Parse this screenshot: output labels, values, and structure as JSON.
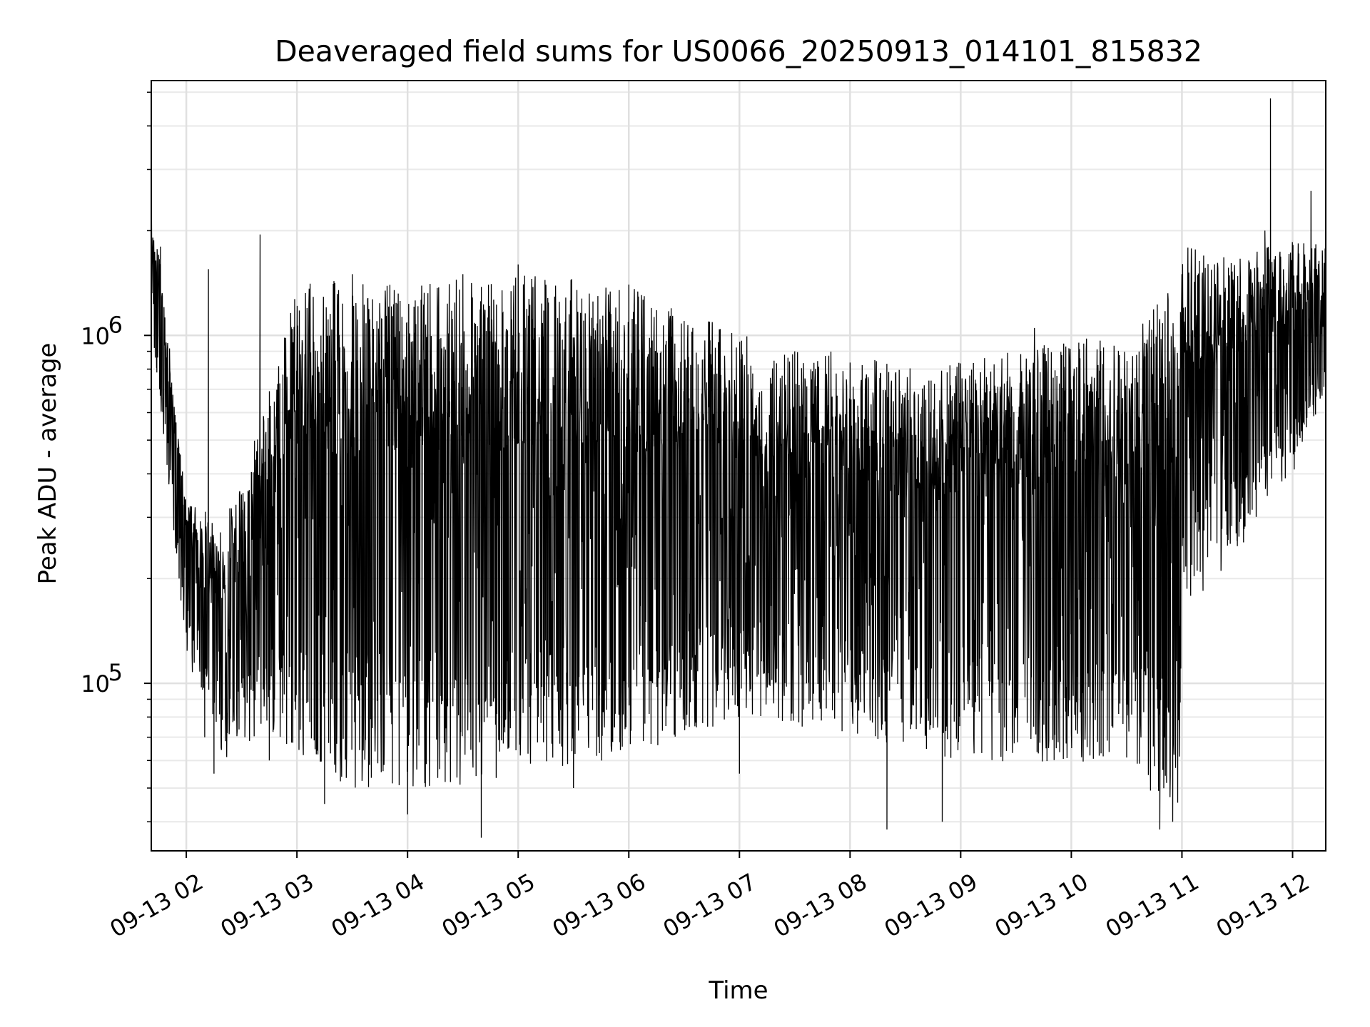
{
  "chart_data": {
    "type": "line",
    "title": "Deaveraged field sums for US0066_20250913_014101_815832",
    "xlabel": "Time",
    "ylabel": "Peak ADU - average",
    "yscale": "log",
    "ylim": [
      33000,
      5400000
    ],
    "xlim": [
      "2025-09-13 01:41",
      "2025-09-13 12:18"
    ],
    "grid": true,
    "line_color": "#000000",
    "x_ticks": [
      {
        "value": "2025-09-13 02:00",
        "label": "09-13 02"
      },
      {
        "value": "2025-09-13 03:00",
        "label": "09-13 03"
      },
      {
        "value": "2025-09-13 04:00",
        "label": "09-13 04"
      },
      {
        "value": "2025-09-13 05:00",
        "label": "09-13 05"
      },
      {
        "value": "2025-09-13 06:00",
        "label": "09-13 06"
      },
      {
        "value": "2025-09-13 07:00",
        "label": "09-13 07"
      },
      {
        "value": "2025-09-13 08:00",
        "label": "09-13 08"
      },
      {
        "value": "2025-09-13 09:00",
        "label": "09-13 09"
      },
      {
        "value": "2025-09-13 10:00",
        "label": "09-13 10"
      },
      {
        "value": "2025-09-13 11:00",
        "label": "09-13 11"
      },
      {
        "value": "2025-09-13 12:00",
        "label": "09-13 12"
      }
    ],
    "y_ticks": [
      {
        "value": 100000,
        "base": "10",
        "exponent": "5"
      },
      {
        "value": 1000000,
        "base": "10",
        "exponent": "6"
      }
    ],
    "envelope": {
      "time": [
        "2025-09-13 01:41",
        "2025-09-13 01:48",
        "2025-09-13 02:00",
        "2025-09-13 02:20",
        "2025-09-13 02:45",
        "2025-09-13 03:00",
        "2025-09-13 03:30",
        "2025-09-13 04:00",
        "2025-09-13 04:30",
        "2025-09-13 05:00",
        "2025-09-13 05:30",
        "2025-09-13 06:00",
        "2025-09-13 06:30",
        "2025-09-13 07:00",
        "2025-09-13 07:30",
        "2025-09-13 08:00",
        "2025-09-13 08:30",
        "2025-09-13 09:00",
        "2025-09-13 09:30",
        "2025-09-13 10:00",
        "2025-09-13 10:30",
        "2025-09-13 10:58",
        "2025-09-13 11:00",
        "2025-09-13 11:30",
        "2025-09-13 12:00",
        "2025-09-13 12:18"
      ],
      "upper": [
        2500000,
        1300000,
        350000,
        280000,
        700000,
        1400000,
        1450000,
        1450000,
        1450000,
        1500000,
        1450000,
        1400000,
        1150000,
        1050000,
        900000,
        900000,
        800000,
        850000,
        900000,
        1000000,
        950000,
        1500000,
        1800000,
        1700000,
        1900000,
        1800000
      ],
      "lower": [
        1000000,
        500000,
        120000,
        60000,
        75000,
        55000,
        50000,
        50000,
        50000,
        55000,
        58000,
        60000,
        70000,
        80000,
        75000,
        70000,
        65000,
        60000,
        58000,
        58000,
        60000,
        38000,
        150000,
        230000,
        400000,
        700000
      ]
    },
    "series": [
      {
        "values": [
          {
            "x": "2025-09-13 01:41",
            "y": 2700000
          },
          {
            "x": "2025-09-13 01:44",
            "y": 1000000
          },
          {
            "x": "2025-09-13 01:46",
            "y": 1800000
          },
          {
            "x": "2025-09-13 01:50",
            "y": 600000
          },
          {
            "x": "2025-09-13 01:55",
            "y": 250000
          },
          {
            "x": "2025-09-13 02:00",
            "y": 140000
          },
          {
            "x": "2025-09-13 02:10",
            "y": 70000
          },
          {
            "x": "2025-09-13 02:12",
            "y": 1550000
          },
          {
            "x": "2025-09-13 02:15",
            "y": 55000
          },
          {
            "x": "2025-09-13 02:30",
            "y": 100000
          },
          {
            "x": "2025-09-13 02:40",
            "y": 1950000
          },
          {
            "x": "2025-09-13 02:45",
            "y": 60000
          },
          {
            "x": "2025-09-13 03:00",
            "y": 800000
          },
          {
            "x": "2025-09-13 03:15",
            "y": 45000
          },
          {
            "x": "2025-09-13 03:30",
            "y": 1500000
          },
          {
            "x": "2025-09-13 04:00",
            "y": 42000
          },
          {
            "x": "2025-09-13 04:30",
            "y": 1500000
          },
          {
            "x": "2025-09-13 04:40",
            "y": 36000
          },
          {
            "x": "2025-09-13 05:00",
            "y": 1600000
          },
          {
            "x": "2025-09-13 05:30",
            "y": 50000
          },
          {
            "x": "2025-09-13 06:00",
            "y": 1400000
          },
          {
            "x": "2025-09-13 06:30",
            "y": 1100000
          },
          {
            "x": "2025-09-13 07:00",
            "y": 55000
          },
          {
            "x": "2025-09-13 07:30",
            "y": 900000
          },
          {
            "x": "2025-09-13 08:00",
            "y": 700000
          },
          {
            "x": "2025-09-13 08:20",
            "y": 38000
          },
          {
            "x": "2025-09-13 08:50",
            "y": 40000
          },
          {
            "x": "2025-09-13 09:00",
            "y": 600000
          },
          {
            "x": "2025-09-13 09:40",
            "y": 1050000
          },
          {
            "x": "2025-09-13 10:00",
            "y": 700000
          },
          {
            "x": "2025-09-13 10:30",
            "y": 600000
          },
          {
            "x": "2025-09-13 10:48",
            "y": 38000
          },
          {
            "x": "2025-09-13 10:55",
            "y": 40000
          },
          {
            "x": "2025-09-13 11:00",
            "y": 1500000
          },
          {
            "x": "2025-09-13 11:30",
            "y": 700000
          },
          {
            "x": "2025-09-13 11:45",
            "y": 2000000
          },
          {
            "x": "2025-09-13 11:48",
            "y": 4800000
          },
          {
            "x": "2025-09-13 12:00",
            "y": 1200000
          },
          {
            "x": "2025-09-13 12:10",
            "y": 2600000
          },
          {
            "x": "2025-09-13 12:18",
            "y": 1000000
          }
        ]
      }
    ]
  }
}
